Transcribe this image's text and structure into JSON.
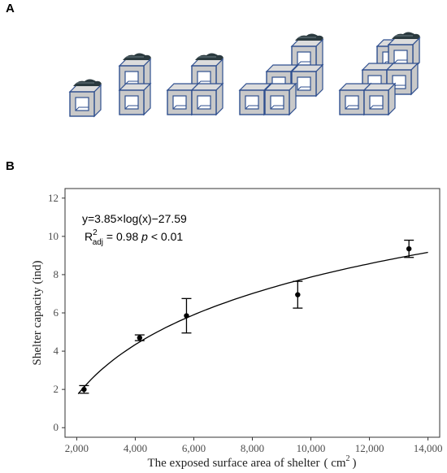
{
  "panels": {
    "a_label": "A",
    "b_label": "B"
  },
  "shelter_configurations": [
    {
      "units": 1
    },
    {
      "units": 2
    },
    {
      "units": 3
    },
    {
      "units": 4
    },
    {
      "units": 5
    }
  ],
  "colors": {
    "cube_fill": "#c9c9c9",
    "cube_top": "#dcdcdc",
    "cube_stroke": "#2f4f8f",
    "window": "#ffffff",
    "rock": "#2b3a3f",
    "curve": "#000000",
    "point": "#000000"
  },
  "chart_data": {
    "type": "scatter",
    "x": [
      2250,
      4150,
      5750,
      9550,
      13350
    ],
    "y": [
      2.0,
      4.7,
      5.85,
      6.95,
      9.35
    ],
    "error_low": [
      1.8,
      4.55,
      4.95,
      6.25,
      8.9
    ],
    "error_high": [
      2.2,
      4.85,
      6.75,
      7.65,
      9.8
    ],
    "fit": {
      "a": 3.85,
      "b": -27.59,
      "x_from": 2050,
      "x_to": 14000
    },
    "xlabel_main": "The exposed surface area of shelter",
    "xlabel_unit_open": "( cm",
    "xlabel_unit_sup": "2",
    "xlabel_unit_close": ")",
    "ylabel": "Shelter capacity (ind)",
    "xlim": [
      1600,
      14400
    ],
    "ylim": [
      -0.5,
      12.5
    ],
    "xticks": [
      2000,
      4000,
      6000,
      8000,
      10000,
      12000,
      14000
    ],
    "xtick_labels": [
      "2,000",
      "4,000",
      "6,000",
      "8,000",
      "10,000",
      "12,000",
      "14,000"
    ],
    "yticks": [
      0,
      2,
      4,
      6,
      8,
      10,
      12
    ],
    "ytick_labels": [
      "0",
      "2",
      "4",
      "6",
      "8",
      "10",
      "12"
    ],
    "equation": "y=3.85×log(x)−27.59",
    "r2_main": "R",
    "r2_sup": "2",
    "r2_sub": "adj",
    "r2_value": " = 0.98 ",
    "p_symbol": "p",
    "p_value": " < 0.01",
    "grid": false
  }
}
